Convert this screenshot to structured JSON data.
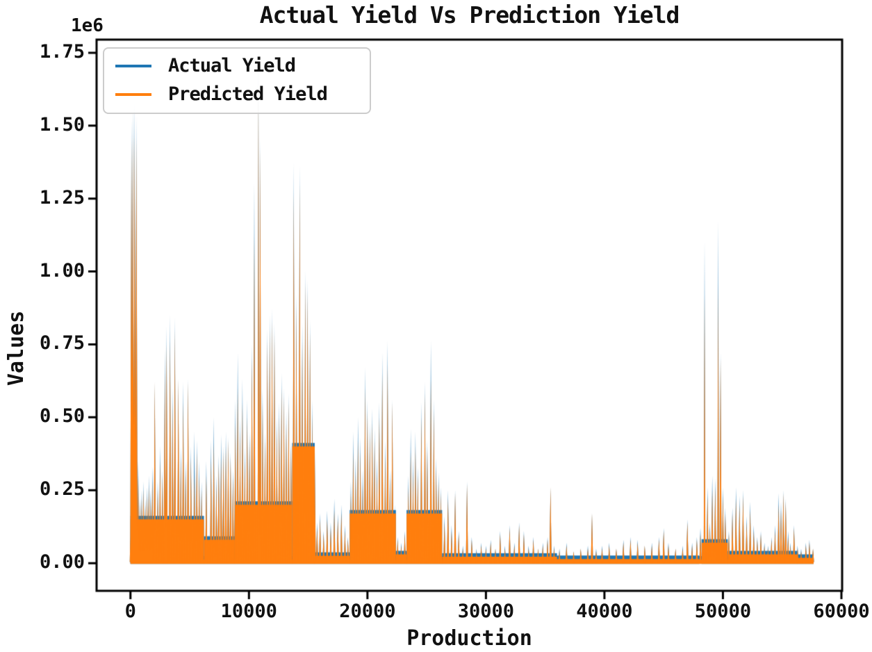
{
  "chart_data": {
    "type": "line",
    "title": "Actual Yield Vs Prediction Yield",
    "xlabel": "Production",
    "ylabel": "Values",
    "offset_text": "1e6",
    "grid": false,
    "legend_position": "upper-left",
    "legend": [
      {
        "label": "Actual Yield",
        "color": "#1f77b4"
      },
      {
        "label": "Predicted Yield",
        "color": "#ff7f0e"
      }
    ],
    "x_tick_labels": [
      "0",
      "10000",
      "20000",
      "30000",
      "40000",
      "50000",
      "60000"
    ],
    "x_ticks": [
      0,
      10000,
      20000,
      30000,
      40000,
      50000,
      60000
    ],
    "y_tick_labels": [
      "0.00",
      "0.25",
      "0.50",
      "0.75",
      "1.00",
      "1.25",
      "1.50",
      "1.75"
    ],
    "y_ticks": [
      0,
      0.25,
      0.5,
      0.75,
      1.0,
      1.25,
      1.5,
      1.75
    ],
    "y_unit_multiplier": 1000000,
    "xlim": [
      -2860,
      60060
    ],
    "ylim": [
      -0.095,
      1.795
    ],
    "series_names": [
      "Actual Yield",
      "Predicted Yield"
    ],
    "samples_format": "[production_x, actual_yield_1e6, predicted_yield_1e6, optional_width_units]",
    "samples": [
      [
        30,
        0.18,
        0.16
      ],
      [
        80,
        1.52,
        1.45,
        200
      ],
      [
        200,
        1.56,
        1.47,
        220
      ],
      [
        350,
        1.58,
        1.47,
        220
      ],
      [
        500,
        1.53,
        1.46,
        200
      ],
      [
        650,
        0.35,
        0.3
      ],
      [
        800,
        0.22,
        0.2
      ],
      [
        950,
        0.25,
        0.22
      ],
      [
        1100,
        0.28,
        0.25
      ],
      [
        1250,
        0.22,
        0.2
      ],
      [
        1400,
        0.26,
        0.23
      ],
      [
        1550,
        0.3,
        0.26
      ],
      [
        1700,
        0.25,
        0.22
      ],
      [
        1850,
        0.33,
        0.28
      ],
      [
        2050,
        0.62,
        0.62
      ],
      [
        2300,
        0.28,
        0.25
      ],
      [
        2500,
        0.4,
        0.35
      ],
      [
        2700,
        0.32,
        0.3
      ],
      [
        2900,
        0.73,
        0.65
      ],
      [
        3050,
        0.81,
        0.75
      ],
      [
        3340,
        0.85,
        0.76
      ],
      [
        3550,
        0.6,
        0.55
      ],
      [
        3750,
        0.84,
        0.8
      ],
      [
        4040,
        0.63,
        0.63
      ],
      [
        4250,
        0.4,
        0.36
      ],
      [
        4450,
        0.62,
        0.55
      ],
      [
        4650,
        0.35,
        0.32
      ],
      [
        4860,
        0.63,
        0.62
      ],
      [
        5100,
        0.4,
        0.36
      ],
      [
        5390,
        0.45,
        0.3
      ],
      [
        5600,
        0.42,
        0.38
      ],
      [
        5800,
        0.35,
        0.3
      ],
      [
        6000,
        0.28,
        0.25
      ],
      [
        6400,
        0.35,
        0.3
      ],
      [
        6600,
        0.1,
        0.08
      ],
      [
        6800,
        0.42,
        0.35
      ],
      [
        7030,
        0.5,
        0.41
      ],
      [
        7250,
        0.3,
        0.27
      ],
      [
        7450,
        0.37,
        0.34
      ],
      [
        7650,
        0.44,
        0.36
      ],
      [
        7850,
        0.4,
        0.38
      ],
      [
        8050,
        0.45,
        0.4
      ],
      [
        8250,
        0.43,
        0.42
      ],
      [
        8450,
        0.38,
        0.36
      ],
      [
        8650,
        0.32,
        0.29
      ],
      [
        8850,
        0.56,
        0.48
      ],
      [
        9050,
        0.72,
        0.6
      ],
      [
        9250,
        0.5,
        0.45
      ],
      [
        9450,
        0.63,
        0.55
      ],
      [
        9650,
        0.4,
        0.35
      ],
      [
        9850,
        0.56,
        0.5
      ],
      [
        10050,
        0.45,
        0.42
      ],
      [
        10250,
        0.75,
        0.7
      ],
      [
        10450,
        1.3,
        1.12
      ],
      [
        10800,
        1.72,
        1.65,
        120
      ],
      [
        10950,
        1.45,
        1.42
      ],
      [
        11150,
        0.6,
        0.55
      ],
      [
        11350,
        0.45,
        0.42
      ],
      [
        11550,
        0.8,
        0.76
      ],
      [
        11750,
        0.85,
        0.8
      ],
      [
        11950,
        0.87,
        0.83
      ],
      [
        12150,
        0.82,
        0.79
      ],
      [
        12350,
        0.5,
        0.46
      ],
      [
        12550,
        0.55,
        0.5
      ],
      [
        12750,
        0.65,
        0.6
      ],
      [
        12950,
        0.6,
        0.57
      ],
      [
        13150,
        0.52,
        0.48
      ],
      [
        13350,
        0.58,
        0.55
      ],
      [
        13550,
        0.42,
        0.4
      ],
      [
        13780,
        1.37,
        1.27
      ],
      [
        14000,
        0.92,
        0.88
      ],
      [
        14280,
        1.36,
        1.3
      ],
      [
        14500,
        0.82,
        0.76
      ],
      [
        14750,
        1.0,
        0.96
      ],
      [
        14950,
        0.97,
        0.93
      ],
      [
        15150,
        0.83,
        0.79
      ],
      [
        15350,
        0.56,
        0.51
      ],
      [
        15550,
        0.4,
        0.37
      ],
      [
        15750,
        0.14,
        0.12
      ],
      [
        16000,
        0.17,
        0.15
      ],
      [
        16300,
        0.11,
        0.1
      ],
      [
        16600,
        0.18,
        0.15
      ],
      [
        16900,
        0.14,
        0.12
      ],
      [
        17200,
        0.22,
        0.18
      ],
      [
        17500,
        0.17,
        0.15
      ],
      [
        17800,
        0.2,
        0.17
      ],
      [
        18100,
        0.13,
        0.11
      ],
      [
        18350,
        0.09,
        0.08
      ],
      [
        18600,
        0.28,
        0.24
      ],
      [
        18800,
        0.45,
        0.38
      ],
      [
        19000,
        0.36,
        0.31
      ],
      [
        19200,
        0.5,
        0.42
      ],
      [
        19400,
        0.43,
        0.38
      ],
      [
        19600,
        0.32,
        0.27
      ],
      [
        19800,
        0.67,
        0.6
      ],
      [
        20000,
        0.56,
        0.52
      ],
      [
        20200,
        0.48,
        0.45
      ],
      [
        20400,
        0.53,
        0.48
      ],
      [
        20600,
        0.46,
        0.42
      ],
      [
        20800,
        0.36,
        0.31
      ],
      [
        21000,
        0.55,
        0.5
      ],
      [
        21250,
        0.72,
        0.65
      ],
      [
        21500,
        0.42,
        0.37
      ],
      [
        21700,
        0.76,
        0.68
      ],
      [
        21900,
        0.32,
        0.29
      ],
      [
        22100,
        0.56,
        0.55
      ],
      [
        22300,
        0.2,
        0.17
      ],
      [
        22550,
        0.09,
        0.08
      ],
      [
        22850,
        0.07,
        0.06
      ],
      [
        23150,
        0.11,
        0.1
      ],
      [
        23450,
        0.3,
        0.26
      ],
      [
        23650,
        0.46,
        0.38
      ],
      [
        23850,
        0.36,
        0.31
      ],
      [
        24050,
        0.45,
        0.4
      ],
      [
        24250,
        0.33,
        0.3
      ],
      [
        24550,
        0.55,
        0.5
      ],
      [
        24850,
        0.62,
        0.58
      ],
      [
        25050,
        0.42,
        0.39
      ],
      [
        25350,
        0.76,
        0.63
      ],
      [
        25600,
        0.56,
        0.52
      ],
      [
        25800,
        0.36,
        0.33
      ],
      [
        26000,
        0.31,
        0.28
      ],
      [
        26200,
        0.26,
        0.24
      ],
      [
        26500,
        0.16,
        0.14
      ],
      [
        26800,
        0.25,
        0.22
      ],
      [
        27100,
        0.13,
        0.11
      ],
      [
        27400,
        0.25,
        0.24
      ],
      [
        27700,
        0.11,
        0.1
      ],
      [
        28050,
        0.06,
        0.05
      ],
      [
        28400,
        0.28,
        0.27
      ],
      [
        28800,
        0.09,
        0.08
      ],
      [
        29200,
        0.05,
        0.04
      ],
      [
        29600,
        0.07,
        0.06
      ],
      [
        30000,
        0.06,
        0.05
      ],
      [
        30400,
        0.08,
        0.07
      ],
      [
        30800,
        0.05,
        0.05
      ],
      [
        31200,
        0.11,
        0.1
      ],
      [
        31600,
        0.06,
        0.05
      ],
      [
        32000,
        0.13,
        0.12
      ],
      [
        32400,
        0.07,
        0.06
      ],
      [
        32800,
        0.14,
        0.13
      ],
      [
        33200,
        0.11,
        0.1
      ],
      [
        33600,
        0.06,
        0.05
      ],
      [
        34000,
        0.09,
        0.08
      ],
      [
        34400,
        0.05,
        0.05
      ],
      [
        34800,
        0.07,
        0.06
      ],
      [
        35200,
        0.09,
        0.08
      ],
      [
        35450,
        0.26,
        0.26
      ],
      [
        35750,
        0.06,
        0.05
      ],
      [
        36200,
        0.05,
        0.04
      ],
      [
        36800,
        0.07,
        0.06
      ],
      [
        37400,
        0.04,
        0.04
      ],
      [
        38000,
        0.05,
        0.05
      ],
      [
        38600,
        0.06,
        0.05
      ],
      [
        38950,
        0.17,
        0.17
      ],
      [
        39300,
        0.05,
        0.04
      ],
      [
        39800,
        0.06,
        0.05
      ],
      [
        40400,
        0.07,
        0.06
      ],
      [
        41000,
        0.05,
        0.05
      ],
      [
        41600,
        0.08,
        0.07
      ],
      [
        42200,
        0.09,
        0.08
      ],
      [
        42800,
        0.08,
        0.07
      ],
      [
        43400,
        0.06,
        0.06
      ],
      [
        44000,
        0.07,
        0.06
      ],
      [
        44600,
        0.09,
        0.08
      ],
      [
        45000,
        0.12,
        0.11
      ],
      [
        45400,
        0.07,
        0.06
      ],
      [
        46000,
        0.05,
        0.05
      ],
      [
        46600,
        0.06,
        0.05
      ],
      [
        47000,
        0.15,
        0.14
      ],
      [
        47400,
        0.07,
        0.06
      ],
      [
        47800,
        0.09,
        0.08
      ],
      [
        48100,
        0.12,
        0.1
      ],
      [
        48450,
        1.1,
        0.92,
        140
      ],
      [
        48700,
        0.26,
        0.23
      ],
      [
        48900,
        0.14,
        0.12
      ],
      [
        49100,
        0.3,
        0.25
      ],
      [
        49350,
        0.29,
        0.26
      ],
      [
        49600,
        1.17,
        0.95,
        140
      ],
      [
        49800,
        0.72,
        0.7
      ],
      [
        50000,
        0.26,
        0.23
      ],
      [
        50200,
        0.19,
        0.17
      ],
      [
        50500,
        0.11,
        0.1
      ],
      [
        50800,
        0.19,
        0.17
      ],
      [
        51100,
        0.26,
        0.22
      ],
      [
        51400,
        0.23,
        0.2
      ],
      [
        51700,
        0.25,
        0.23
      ],
      [
        52000,
        0.16,
        0.14
      ],
      [
        52300,
        0.21,
        0.18
      ],
      [
        52600,
        0.13,
        0.11
      ],
      [
        52900,
        0.09,
        0.08
      ],
      [
        53200,
        0.11,
        0.1
      ],
      [
        53500,
        0.07,
        0.06
      ],
      [
        53800,
        0.06,
        0.05
      ],
      [
        54100,
        0.09,
        0.08
      ],
      [
        54400,
        0.13,
        0.11
      ],
      [
        54700,
        0.24,
        0.2
      ],
      [
        54900,
        0.21,
        0.18
      ],
      [
        55100,
        0.25,
        0.24
      ],
      [
        55300,
        0.22,
        0.21
      ],
      [
        55500,
        0.11,
        0.09
      ],
      [
        55700,
        0.07,
        0.06
      ],
      [
        56000,
        0.13,
        0.12
      ],
      [
        56300,
        0.06,
        0.05
      ],
      [
        56600,
        0.05,
        0.04
      ],
      [
        57000,
        0.07,
        0.06
      ],
      [
        57300,
        0.08,
        0.07
      ],
      [
        57600,
        0.05,
        0.05
      ]
    ],
    "base_bands_format": "[x0, x1, solid_fill_height_1e6]",
    "base_bands": [
      [
        0,
        6200,
        0.15
      ],
      [
        6200,
        8800,
        0.08
      ],
      [
        8800,
        13650,
        0.2
      ],
      [
        13650,
        15550,
        0.4
      ],
      [
        15550,
        18500,
        0.025
      ],
      [
        18500,
        22400,
        0.17
      ],
      [
        22400,
        23300,
        0.03
      ],
      [
        23300,
        26300,
        0.17
      ],
      [
        26300,
        36000,
        0.022
      ],
      [
        36000,
        48000,
        0.014
      ],
      [
        48200,
        50400,
        0.07
      ],
      [
        50400,
        56300,
        0.03
      ],
      [
        56300,
        57650,
        0.018
      ]
    ],
    "baseline_band": [
      0,
      57650,
      0.012
    ]
  }
}
